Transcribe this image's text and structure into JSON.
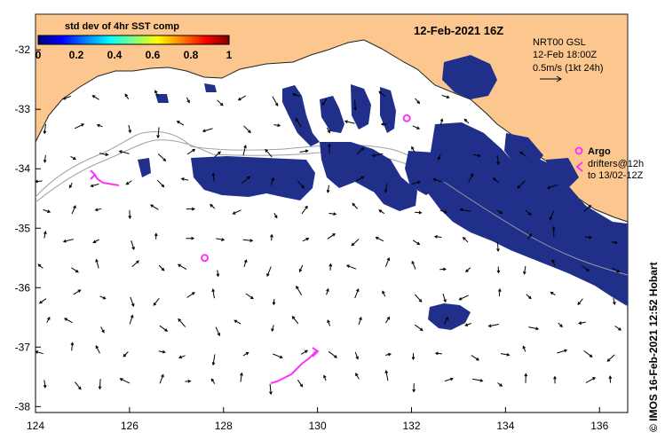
{
  "map": {
    "title": "12-Feb-2021 16Z",
    "colorbar": {
      "label": "std dev of 4hr SST comp",
      "ticks": [
        "0",
        "0.2",
        "0.4",
        "0.6",
        "0.8",
        "1"
      ],
      "min": 0,
      "max": 1,
      "colors": [
        "#000080",
        "#0000ff",
        "#0080ff",
        "#00ffff",
        "#80ff80",
        "#ffff00",
        "#ff8000",
        "#ff0000",
        "#800000"
      ]
    },
    "current_key": {
      "line1": "NRT00 GSL",
      "line2": "12-Feb 18:00Z",
      "line3": "0.5m/s (1kt 24h)"
    },
    "legend": {
      "argo_label": "Argo",
      "drifters_line1": "drifters@12h",
      "drifters_line2": "to 13/02-12Z"
    },
    "credit": "© IMOS 16-Feb-2021 12:52 Hobart",
    "lon_ticks": [
      "124",
      "126",
      "128",
      "130",
      "132",
      "134",
      "136"
    ],
    "lat_ticks": [
      "-32",
      "-33",
      "-34",
      "-35",
      "-36",
      "-37",
      "-38"
    ],
    "lon_range": [
      124,
      136.6
    ],
    "lat_range": [
      -31.4,
      -38.1
    ],
    "colors": {
      "land": "#fcc78f",
      "sea": "#ffffff",
      "sst_patch": "#1f2f8a",
      "argo": "#ff33ff",
      "drifter": "#ff33ff",
      "bathymetry": "#a0a0a0"
    },
    "argo_floats": [
      {
        "lon": 127.6,
        "lat": -35.5
      },
      {
        "lon": 131.9,
        "lat": -33.15
      }
    ]
  }
}
